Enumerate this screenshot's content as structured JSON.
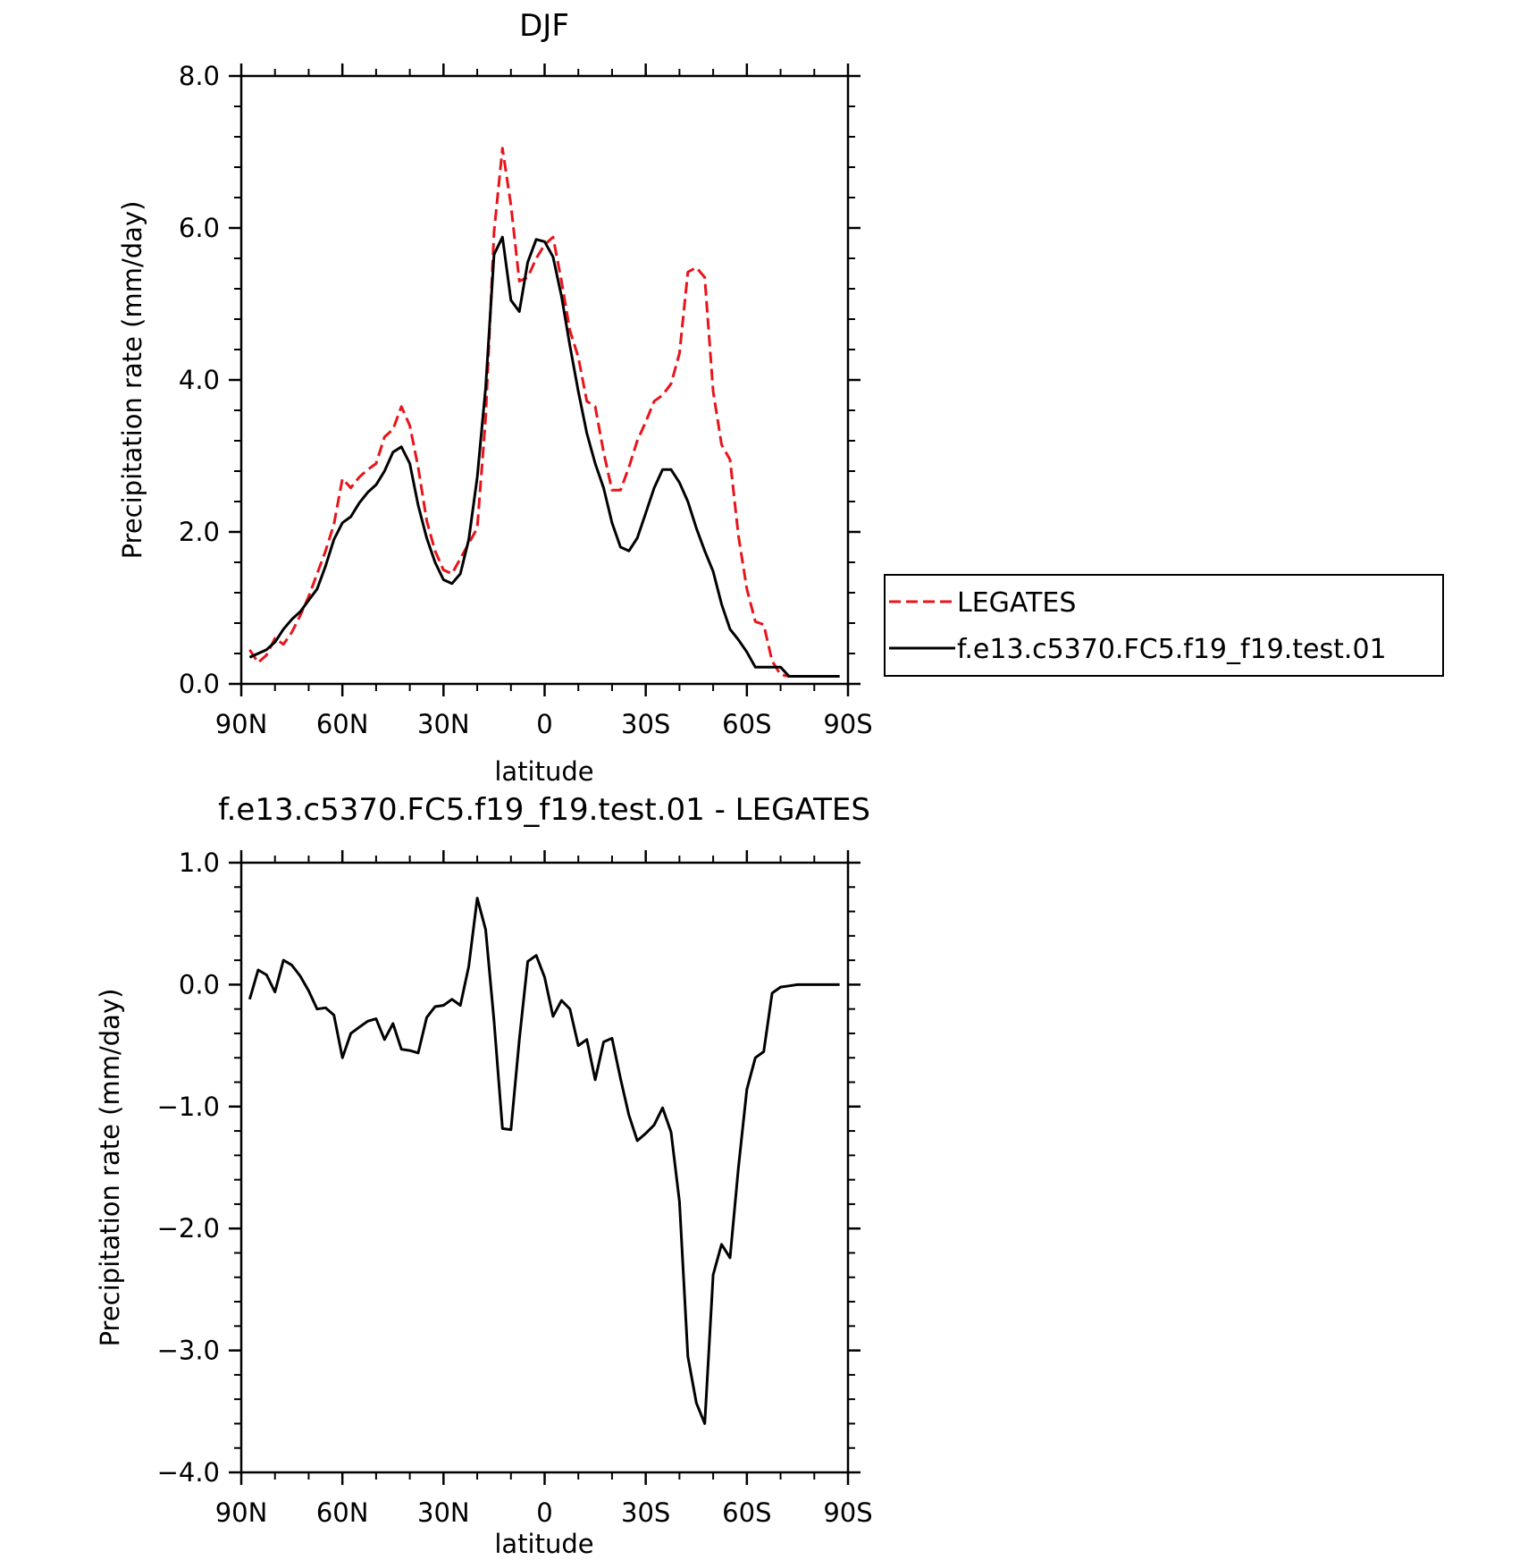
{
  "chart_data": [
    {
      "type": "line",
      "title": "DJF",
      "xlabel": "latitude",
      "ylabel": "Precipitation rate (mm/day)",
      "xlim": [
        90,
        -90
      ],
      "ylim": [
        0,
        8
      ],
      "x_tick_values": [
        90,
        60,
        30,
        0,
        -30,
        -60,
        -90
      ],
      "x_tick_labels": [
        "90N",
        "60N",
        "30N",
        "0",
        "30S",
        "60S",
        "90S"
      ],
      "y_tick_values": [
        0,
        2,
        4,
        6,
        8
      ],
      "y_tick_labels": [
        "0.0",
        "2.0",
        "4.0",
        "6.0",
        "8.0"
      ],
      "legend_position": "right",
      "series": [
        {
          "name": "LEGATES",
          "color": "#e8141b",
          "dash": "dashed",
          "x": [
            87.5,
            85,
            82.5,
            80,
            77.5,
            75,
            72.5,
            70,
            67.5,
            65,
            62.5,
            60,
            57.5,
            55,
            52.5,
            50,
            47.5,
            45,
            42.5,
            40,
            37.5,
            35,
            32.5,
            30,
            27.5,
            25,
            22.5,
            20,
            17.5,
            15,
            12.5,
            10,
            7.5,
            5,
            2.5,
            0,
            -2.5,
            -5,
            -7.5,
            -10,
            -12.5,
            -15,
            -17.5,
            -20,
            -22.5,
            -25,
            -27.5,
            -30,
            -32.5,
            -35,
            -37.5,
            -40,
            -42.5,
            -45,
            -47.5,
            -50,
            -52.5,
            -55,
            -57.5,
            -60,
            -62.5,
            -65,
            -67.5,
            -70,
            -72.5,
            -75,
            -77.5,
            -80,
            -82.5,
            -85,
            -87.5
          ],
          "values": [
            0.45,
            0.28,
            0.38,
            0.6,
            0.52,
            0.68,
            0.9,
            1.15,
            1.45,
            1.75,
            2.1,
            2.7,
            2.58,
            2.72,
            2.82,
            2.9,
            3.25,
            3.35,
            3.65,
            3.4,
            2.85,
            2.15,
            1.75,
            1.5,
            1.45,
            1.65,
            1.85,
            2.05,
            3.5,
            5.95,
            7.05,
            6.3,
            5.3,
            5.35,
            5.6,
            5.78,
            5.88,
            5.3,
            4.65,
            4.3,
            3.72,
            3.65,
            3.05,
            2.55,
            2.55,
            2.85,
            3.2,
            3.45,
            3.72,
            3.8,
            3.95,
            4.35,
            5.42,
            5.48,
            5.35,
            3.85,
            3.15,
            2.95,
            1.95,
            1.25,
            0.82,
            0.78,
            0.3,
            0.12,
            0.1,
            0.1,
            0.1,
            0.1,
            0.1,
            0.1,
            0.1
          ]
        },
        {
          "name": "f.e13.c5370.FC5.f19_f19.test.01",
          "color": "#000000",
          "dash": "solid",
          "x": [
            87.5,
            85,
            82.5,
            80,
            77.5,
            75,
            72.5,
            70,
            67.5,
            65,
            62.5,
            60,
            57.5,
            55,
            52.5,
            50,
            47.5,
            45,
            42.5,
            40,
            37.5,
            35,
            32.5,
            30,
            27.5,
            25,
            22.5,
            20,
            17.5,
            15,
            12.5,
            10,
            7.5,
            5,
            2.5,
            0,
            -2.5,
            -5,
            -7.5,
            -10,
            -12.5,
            -15,
            -17.5,
            -20,
            -22.5,
            -25,
            -27.5,
            -30,
            -32.5,
            -35,
            -37.5,
            -40,
            -42.5,
            -45,
            -47.5,
            -50,
            -52.5,
            -55,
            -57.5,
            -60,
            -62.5,
            -65,
            -67.5,
            -70,
            -72.5,
            -75,
            -77.5,
            -80,
            -82.5,
            -85,
            -87.5
          ],
          "values": [
            0.35,
            0.4,
            0.45,
            0.55,
            0.72,
            0.85,
            0.95,
            1.1,
            1.25,
            1.55,
            1.9,
            2.12,
            2.2,
            2.38,
            2.52,
            2.62,
            2.8,
            3.05,
            3.12,
            2.9,
            2.35,
            1.92,
            1.6,
            1.37,
            1.32,
            1.45,
            1.9,
            2.72,
            3.9,
            5.65,
            5.88,
            5.05,
            4.9,
            5.55,
            5.85,
            5.82,
            5.62,
            5.1,
            4.45,
            3.85,
            3.3,
            2.9,
            2.58,
            2.12,
            1.8,
            1.75,
            1.92,
            2.25,
            2.58,
            2.82,
            2.82,
            2.65,
            2.4,
            2.05,
            1.75,
            1.48,
            1.05,
            0.72,
            0.58,
            0.42,
            0.22,
            0.22,
            0.22,
            0.22,
            0.1,
            0.1,
            0.1,
            0.1,
            0.1,
            0.1,
            0.1
          ]
        }
      ]
    },
    {
      "type": "line",
      "title": "f.e13.c5370.FC5.f19_f19.test.01 - LEGATES",
      "xlabel": "latitude",
      "ylabel": "Precipitation rate (mm/day)",
      "xlim": [
        90,
        -90
      ],
      "ylim": [
        -4,
        1
      ],
      "x_tick_values": [
        90,
        60,
        30,
        0,
        -30,
        -60,
        -90
      ],
      "x_tick_labels": [
        "90N",
        "60N",
        "30N",
        "0",
        "30S",
        "60S",
        "90S"
      ],
      "y_tick_values": [
        1,
        0,
        -1,
        -2,
        -3,
        -4
      ],
      "y_tick_labels": [
        "1.0",
        "0.0",
        "−1.0",
        "−2.0",
        "−3.0",
        "−4.0"
      ],
      "series": [
        {
          "color": "#000000",
          "dash": "solid",
          "x": [
            87.5,
            85,
            82.5,
            80,
            77.5,
            75,
            72.5,
            70,
            67.5,
            65,
            62.5,
            60,
            57.5,
            55,
            52.5,
            50,
            47.5,
            45,
            42.5,
            40,
            37.5,
            35,
            32.5,
            30,
            27.5,
            25,
            22.5,
            20,
            17.5,
            15,
            12.5,
            10,
            7.5,
            5,
            2.5,
            0,
            -2.5,
            -5,
            -7.5,
            -10,
            -12.5,
            -15,
            -17.5,
            -20,
            -22.5,
            -25,
            -27.5,
            -30,
            -32.5,
            -35,
            -37.5,
            -40,
            -42.5,
            -45,
            -47.5,
            -50,
            -52.5,
            -55,
            -57.5,
            -60,
            -62.5,
            -65,
            -67.5,
            -70,
            -72.5,
            -75,
            -77.5,
            -80,
            -82.5,
            -85,
            -87.5
          ],
          "values": [
            -0.12,
            0.12,
            0.08,
            -0.06,
            0.2,
            0.16,
            0.07,
            -0.05,
            -0.2,
            -0.19,
            -0.25,
            -0.6,
            -0.4,
            -0.35,
            -0.3,
            -0.28,
            -0.45,
            -0.32,
            -0.53,
            -0.54,
            -0.56,
            -0.27,
            -0.18,
            -0.17,
            -0.12,
            -0.17,
            0.15,
            0.71,
            0.45,
            -0.3,
            -1.18,
            -1.19,
            -0.45,
            0.19,
            0.24,
            0.06,
            -0.26,
            -0.13,
            -0.2,
            -0.5,
            -0.45,
            -0.78,
            -0.47,
            -0.44,
            -0.77,
            -1.07,
            -1.28,
            -1.22,
            -1.15,
            -1.01,
            -1.21,
            -1.78,
            -3.05,
            -3.43,
            -3.6,
            -2.38,
            -2.13,
            -2.24,
            -1.5,
            -0.86,
            -0.6,
            -0.55,
            -0.07,
            -0.02,
            -0.01,
            0.0,
            0.0,
            0.0,
            0.0,
            0.0,
            0.0
          ]
        }
      ]
    }
  ]
}
